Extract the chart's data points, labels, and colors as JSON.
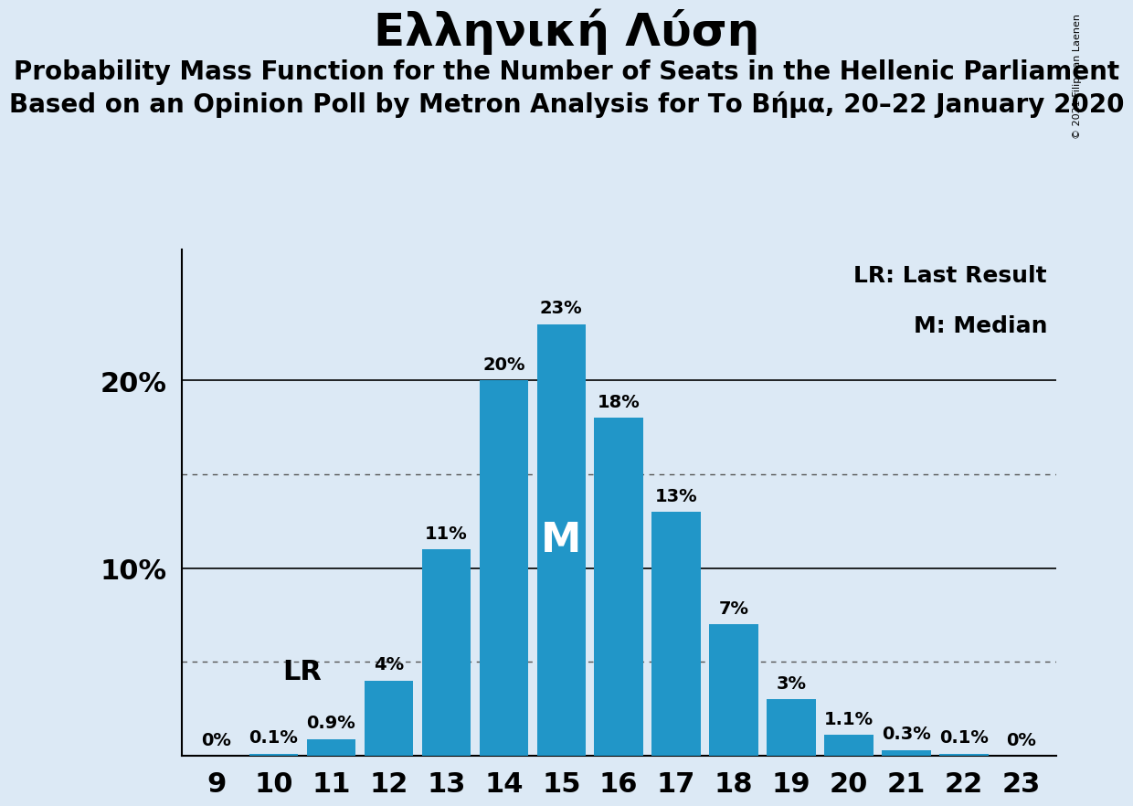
{
  "title": "Ελληνική Λύση",
  "subtitle1": "Probability Mass Function for the Number of Seats in the Hellenic Parliament",
  "subtitle2": "Based on an Opinion Poll by Metron Analysis for Το Βήμα, 20–22 January 2020",
  "copyright": "© 2021 Filip van Laenen",
  "seats": [
    9,
    10,
    11,
    12,
    13,
    14,
    15,
    16,
    17,
    18,
    19,
    20,
    21,
    22,
    23
  ],
  "probabilities": [
    0.0,
    0.1,
    0.9,
    4.0,
    11.0,
    20.0,
    23.0,
    18.0,
    13.0,
    7.0,
    3.0,
    1.1,
    0.3,
    0.1,
    0.0
  ],
  "bar_color": "#2196C8",
  "background_color": "#dce9f5",
  "median_seat": 15,
  "lr_seat": 10,
  "lr_label": "LR",
  "median_label": "M",
  "legend_lr": "LR: Last Result",
  "legend_m": "M: Median",
  "solid_gridlines": [
    10,
    20
  ],
  "dotted_gridlines": [
    5,
    15
  ],
  "ylim": [
    0,
    27
  ],
  "bar_label_fontsize": 14,
  "axis_fontsize": 22,
  "title_fontsize": 36,
  "subtitle_fontsize": 20,
  "legend_fontsize": 18,
  "lr_label_fontsize": 22,
  "median_label_fontsize": 32
}
